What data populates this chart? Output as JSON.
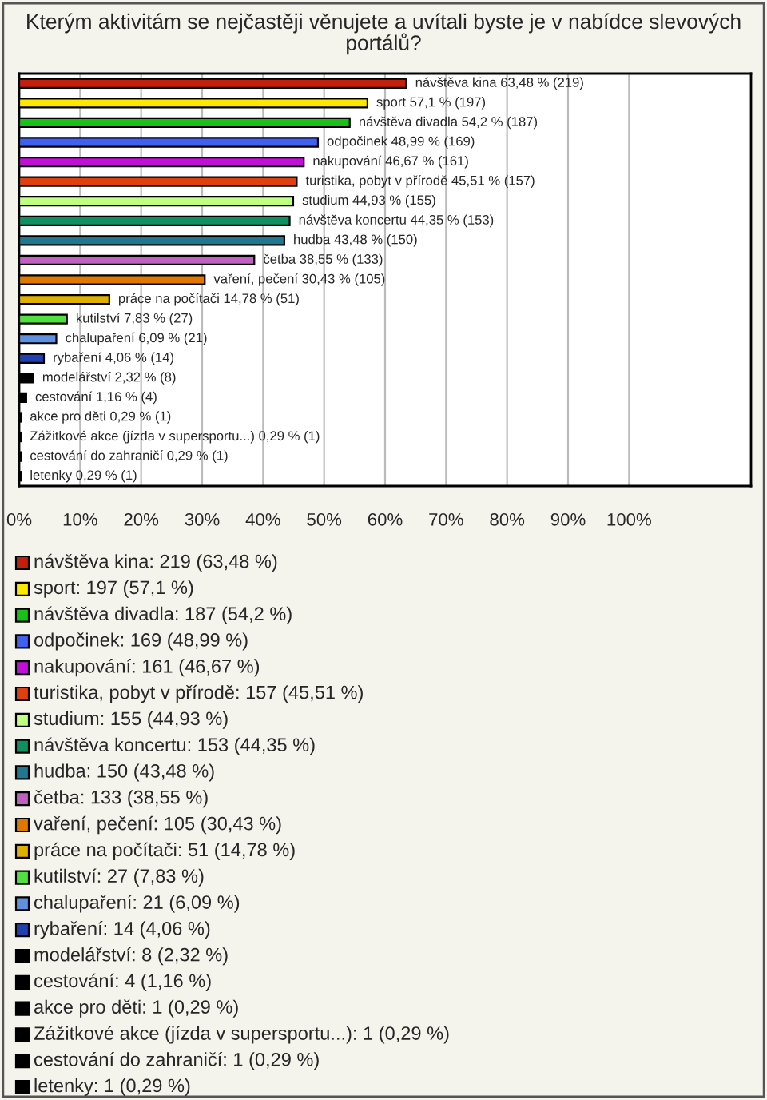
{
  "chart_data": {
    "type": "bar",
    "orientation": "horizontal",
    "title": "Kterým aktivitám se nejčastěji věnujete a uvítali byste je v nabídce slevových portálů?",
    "categories": [
      null,
      null,
      null,
      null,
      null,
      null,
      null,
      null,
      null,
      null,
      null,
      null,
      null,
      null,
      null,
      null,
      null,
      null,
      null,
      null,
      null
    ],
    "values": [
      63.48,
      57.1,
      54.2,
      48.99,
      46.67,
      45.51,
      44.93,
      44.35,
      43.48,
      38.55,
      30.43,
      14.78,
      7.83,
      6.09,
      4.06,
      2.32,
      1.16,
      0.29,
      0.29,
      0.29,
      0.29
    ],
    "colors": [
      "#c41e0c",
      "#ffe800",
      "#18c018",
      "#4060f0",
      "#c010d8",
      "#e04010",
      "#c0ff80",
      "#109060",
      "#207890",
      "#c060c0",
      "#e07800",
      "#e0b000",
      "#50e040",
      "#6090e0",
      "#2040b0",
      "#000000",
      "#000000",
      "#000000",
      "#000000",
      "#000000",
      "#000000"
    ],
    "value_labels": [
      "návštěva kina 63,48 % (219)",
      "sport 57,1 % (197)",
      "návštěva divadla 54,2 % (187)",
      "odpočinek 48,99 % (169)",
      "nakupování 46,67 % (161)",
      "turistika, pobyt v přírodě 45,51 % (157)",
      "studium 44,93 % (155)",
      "návštěva koncertu 44,35 % (153)",
      "hudba 43,48 % (150)",
      "četba 38,55 % (133)",
      "vaření, pečení 30,43 % (105)",
      "práce na počítači 14,78 % (51)",
      "kutilství 7,83 % (27)",
      "chalupaření 6,09 % (21)",
      "rybaření 4,06 % (14)",
      "modelářství 2,32 % (8)",
      "cestování 1,16 % (4)",
      "akce pro děti 0,29 % (1)",
      "Zážitkové akce (jízda v supersportu...) 0,29 % (1)",
      "cestování do zahraničí 0,29 % (1)",
      "letenky 0,29 % (1)"
    ],
    "annotations": [
      "návštěva kina: 219 (63,48 %)",
      "sport: 197 (57,1 %)",
      "návštěva divadla: 187 (54,2 %)",
      "odpočinek: 169 (48,99 %)",
      "nakupování: 161 (46,67 %)",
      "turistika, pobyt v přírodě: 157 (45,51 %)",
      "studium: 155 (44,93 %)",
      "návštěva koncertu: 153 (44,35 %)",
      "hudba: 150 (43,48 %)",
      "četba: 133 (38,55 %)",
      "vaření, pečení: 105 (30,43 %)",
      "práce na počítači: 51 (14,78 %)",
      "kutilství: 27 (7,83 %)",
      "chalupaření: 21 (6,09 %)",
      "rybaření: 14 (4,06 %)",
      "modelářství: 8 (2,32 %)",
      "cestování: 4 (1,16 %)",
      "akce pro děti: 1 (0,29 %)",
      "Zážitkové akce (jízda v supersportu...): 1 (0,29 %)",
      "cestování do zahraničí: 1 (0,29 %)",
      "letenky: 1 (0,29 %)"
    ],
    "xlim": [
      0,
      120
    ],
    "xticks": [
      {
        "value": 0,
        "label": "0%"
      },
      {
        "value": 10,
        "label": "10%"
      },
      {
        "value": 20,
        "label": "20%"
      },
      {
        "value": 30,
        "label": "30%"
      },
      {
        "value": 40,
        "label": "40%"
      },
      {
        "value": 50,
        "label": "50%"
      },
      {
        "value": 60,
        "label": "60%"
      },
      {
        "value": 70,
        "label": "70%"
      },
      {
        "value": 80,
        "label": "80%"
      },
      {
        "value": 90,
        "label": "90%"
      },
      {
        "value": 100,
        "label": "100%"
      }
    ],
    "grid": "x"
  }
}
